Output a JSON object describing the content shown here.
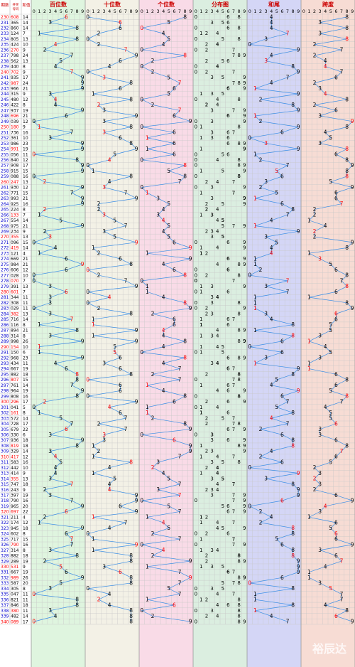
{
  "header": {
    "period_label": "期数",
    "number_label": "开奖号码",
    "sum_label": "和值",
    "sections": [
      "百位数",
      "十位数",
      "个位数",
      "分布图",
      "和尾",
      "跨度"
    ],
    "digits": [
      "0",
      "1",
      "2",
      "3",
      "4",
      "5",
      "6",
      "7",
      "8",
      "9"
    ]
  },
  "colors": {
    "hundreds_bg": "#dff5df",
    "tens_bg": "#f3f1e6",
    "units_bg": "#f9dbe7",
    "dist_bg": "#dbeee0",
    "sumtail_bg": "#d4d6f6",
    "span_bg": "#f7dcd4",
    "period_red": "#ff0000",
    "period_blue": "#0000cc",
    "line": "#3a8ee6",
    "hot": "#ff0000",
    "header_text": "#cc0000",
    "grid": "#c8c8c8"
  },
  "watermark": "裕辰达",
  "chart_data": {
    "type": "table",
    "title": "",
    "columns": [
      "期数",
      "开奖号码",
      "和值",
      "百位数",
      "十位数",
      "个位数",
      "分布图",
      "和尾",
      "跨度"
    ],
    "rows": [
      {
        "period": "230",
        "number": "608",
        "sum": "14"
      },
      {
        "period": "231",
        "number": "365",
        "sum": "14"
      },
      {
        "period": "232",
        "number": "860",
        "sum": "14"
      },
      {
        "period": "233",
        "number": "124",
        "sum": "7"
      },
      {
        "period": "234",
        "number": "805",
        "sum": "13"
      },
      {
        "period": "235",
        "number": "424",
        "sum": "10"
      },
      {
        "period": "236",
        "number": "270",
        "sum": "9"
      },
      {
        "period": "237",
        "number": "798",
        "sum": "24"
      },
      {
        "period": "238",
        "number": "562",
        "sum": "13"
      },
      {
        "period": "239",
        "number": "440",
        "sum": "8"
      },
      {
        "period": "240",
        "number": "702",
        "sum": "9"
      },
      {
        "period": "241",
        "number": "935",
        "sum": "17"
      },
      {
        "period": "242",
        "number": "987",
        "sum": "24"
      },
      {
        "period": "243",
        "number": "966",
        "sum": "21"
      },
      {
        "period": "244",
        "number": "315",
        "sum": "9"
      },
      {
        "period": "245",
        "number": "480",
        "sum": "12"
      },
      {
        "period": "246",
        "number": "422",
        "sum": "8"
      },
      {
        "period": "247",
        "number": "937",
        "sum": "19"
      },
      {
        "period": "248",
        "number": "696",
        "sum": "21"
      },
      {
        "period": "249",
        "number": "039",
        "sum": "12"
      },
      {
        "period": "250",
        "number": "180",
        "sum": "9"
      },
      {
        "period": "251",
        "number": "736",
        "sum": "16"
      },
      {
        "period": "252",
        "number": "361",
        "sum": "10"
      },
      {
        "period": "253",
        "number": "986",
        "sum": "23"
      },
      {
        "period": "254",
        "number": "991",
        "sum": "19"
      },
      {
        "period": "255",
        "number": "056",
        "sum": "11"
      },
      {
        "period": "256",
        "number": "840",
        "sum": "12"
      },
      {
        "period": "257",
        "number": "908",
        "sum": "17"
      },
      {
        "period": "258",
        "number": "915",
        "sum": "15"
      },
      {
        "period": "259",
        "number": "088",
        "sum": "16"
      },
      {
        "period": "260",
        "number": "247",
        "sum": "13"
      },
      {
        "period": "261",
        "number": "930",
        "sum": "12"
      },
      {
        "period": "262",
        "number": "771",
        "sum": "15"
      },
      {
        "period": "263",
        "number": "993",
        "sum": "21"
      },
      {
        "period": "264",
        "number": "925",
        "sum": "16"
      },
      {
        "period": "265",
        "number": "224",
        "sum": "8"
      },
      {
        "period": "266",
        "number": "133",
        "sum": "7"
      },
      {
        "period": "267",
        "number": "554",
        "sum": "14"
      },
      {
        "period": "268",
        "number": "975",
        "sum": "21"
      },
      {
        "period": "269",
        "number": "234",
        "sum": "9"
      },
      {
        "period": "270",
        "number": "355",
        "sum": "13"
      },
      {
        "period": "271",
        "number": "096",
        "sum": "15"
      },
      {
        "period": "272",
        "number": "419",
        "sum": "14"
      },
      {
        "period": "273",
        "number": "121",
        "sum": "4"
      },
      {
        "period": "274",
        "number": "669",
        "sum": "21"
      },
      {
        "period": "275",
        "number": "984",
        "sum": "21"
      },
      {
        "period": "276",
        "number": "606",
        "sum": "12"
      },
      {
        "period": "277",
        "number": "028",
        "sum": "10"
      },
      {
        "period": "278",
        "number": "070",
        "sum": "7"
      },
      {
        "period": "279",
        "number": "391",
        "sum": "13"
      },
      {
        "period": "280",
        "number": "601",
        "sum": "7"
      },
      {
        "period": "281",
        "number": "344",
        "sum": "11"
      },
      {
        "period": "282",
        "number": "308",
        "sum": "11"
      },
      {
        "period": "283",
        "number": "029",
        "sum": "11"
      },
      {
        "period": "284",
        "number": "382",
        "sum": "13"
      },
      {
        "period": "285",
        "number": "716",
        "sum": "14"
      },
      {
        "period": "286",
        "number": "116",
        "sum": "8"
      },
      {
        "period": "287",
        "number": "894",
        "sum": "21"
      },
      {
        "period": "288",
        "number": "314",
        "sum": "8"
      },
      {
        "period": "289",
        "number": "998",
        "sum": "26"
      },
      {
        "period": "290",
        "number": "154",
        "sum": "10"
      },
      {
        "period": "291",
        "number": "150",
        "sum": "6"
      },
      {
        "period": "292",
        "number": "968",
        "sum": "23"
      },
      {
        "period": "293",
        "number": "434",
        "sum": "11"
      },
      {
        "period": "294",
        "number": "667",
        "sum": "19"
      },
      {
        "period": "295",
        "number": "882",
        "sum": "18"
      },
      {
        "period": "296",
        "number": "807",
        "sum": "15"
      },
      {
        "period": "297",
        "number": "761",
        "sum": "14"
      },
      {
        "period": "298",
        "number": "964",
        "sum": "19"
      },
      {
        "period": "299",
        "number": "808",
        "sum": "16"
      },
      {
        "period": "300",
        "number": "296",
        "sum": "17"
      },
      {
        "period": "301",
        "number": "041",
        "sum": "5"
      },
      {
        "period": "302",
        "number": "161",
        "sum": "8"
      },
      {
        "period": "303",
        "number": "572",
        "sum": "14"
      },
      {
        "period": "304",
        "number": "728",
        "sum": "17"
      },
      {
        "period": "305",
        "number": "679",
        "sum": "22"
      },
      {
        "period": "306",
        "number": "330",
        "sum": "6"
      },
      {
        "period": "307",
        "number": "936",
        "sum": "18"
      },
      {
        "period": "308",
        "number": "819",
        "sum": "18"
      },
      {
        "period": "309",
        "number": "329",
        "sum": "14"
      },
      {
        "period": "310",
        "number": "417",
        "sum": "12"
      },
      {
        "period": "311",
        "number": "583",
        "sum": "16"
      },
      {
        "period": "312",
        "number": "442",
        "sum": "10"
      },
      {
        "period": "313",
        "number": "414",
        "sum": "9"
      },
      {
        "period": "314",
        "number": "355",
        "sum": "13"
      },
      {
        "period": "315",
        "number": "747",
        "sum": "18"
      },
      {
        "period": "316",
        "number": "243",
        "sum": "9"
      },
      {
        "period": "317",
        "number": "397",
        "sum": "19"
      },
      {
        "period": "318",
        "number": "790",
        "sum": "16"
      },
      {
        "period": "319",
        "number": "965",
        "sum": "20"
      },
      {
        "period": "320",
        "number": "697",
        "sum": "22"
      },
      {
        "period": "321",
        "number": "211",
        "sum": "4"
      },
      {
        "period": "322",
        "number": "174",
        "sum": "12"
      },
      {
        "period": "323",
        "number": "945",
        "sum": "18"
      },
      {
        "period": "324",
        "number": "602",
        "sum": "8"
      },
      {
        "period": "325",
        "number": "717",
        "sum": "15"
      },
      {
        "period": "326",
        "number": "790",
        "sum": "16"
      },
      {
        "period": "327",
        "number": "314",
        "sum": "8"
      },
      {
        "period": "328",
        "number": "882",
        "sum": "18"
      },
      {
        "period": "329",
        "number": "289",
        "sum": "19"
      },
      {
        "period": "330",
        "number": "531",
        "sum": "9"
      },
      {
        "period": "331",
        "number": "667",
        "sum": "19"
      },
      {
        "period": "332",
        "number": "989",
        "sum": "26"
      },
      {
        "period": "333",
        "number": "587",
        "sum": "20"
      },
      {
        "period": "334",
        "number": "305",
        "sum": "8"
      },
      {
        "period": "335",
        "number": "047",
        "sum": "11"
      },
      {
        "period": "336",
        "number": "821",
        "sum": "11"
      },
      {
        "period": "337",
        "number": "846",
        "sum": "18"
      },
      {
        "period": "338",
        "number": "380",
        "sum": "11"
      },
      {
        "period": "339",
        "number": "482",
        "sum": "14"
      },
      {
        "period": "340",
        "number": "089",
        "sum": "17"
      }
    ]
  }
}
